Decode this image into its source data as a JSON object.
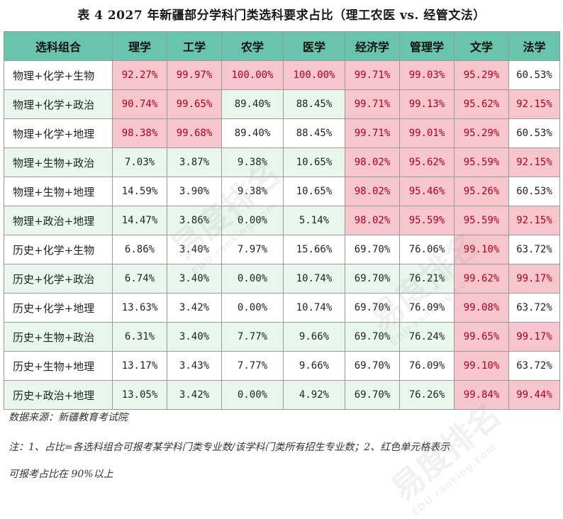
{
  "title": "表 4  2027 年新疆部分学科门类选科要求占比（理工农医 vs. 经管文法）",
  "headers": [
    "选科组合",
    "理学",
    "工学",
    "农学",
    "医学",
    "经济学",
    "管理学",
    "文学",
    "法学"
  ],
  "rows": [
    {
      "combo": "物理+化学+生物",
      "values": [
        "92.27%",
        "99.97%",
        "100.00%",
        "100.00%",
        "99.71%",
        "99.03%",
        "95.29%",
        "60.53%"
      ],
      "highlight": [
        true,
        true,
        true,
        true,
        true,
        true,
        true,
        false
      ]
    },
    {
      "combo": "物理+化学+政治",
      "values": [
        "90.74%",
        "99.65%",
        "89.40%",
        "88.45%",
        "99.71%",
        "99.13%",
        "95.62%",
        "92.15%"
      ],
      "highlight": [
        true,
        true,
        false,
        false,
        true,
        true,
        true,
        true
      ]
    },
    {
      "combo": "物理+化学+地理",
      "values": [
        "98.38%",
        "99.68%",
        "89.40%",
        "88.45%",
        "99.71%",
        "99.01%",
        "95.29%",
        "60.53%"
      ],
      "highlight": [
        true,
        true,
        false,
        false,
        true,
        true,
        true,
        false
      ]
    },
    {
      "combo": "物理+生物+政治",
      "values": [
        "7.03%",
        "3.87%",
        "9.38%",
        "10.65%",
        "98.02%",
        "95.62%",
        "95.59%",
        "92.15%"
      ],
      "highlight": [
        false,
        false,
        false,
        false,
        true,
        true,
        true,
        true
      ]
    },
    {
      "combo": "物理+生物+地理",
      "values": [
        "14.59%",
        "3.90%",
        "9.38%",
        "10.65%",
        "98.02%",
        "95.46%",
        "95.26%",
        "60.53%"
      ],
      "highlight": [
        false,
        false,
        false,
        false,
        true,
        true,
        true,
        false
      ]
    },
    {
      "combo": "物理+政治+地理",
      "values": [
        "14.47%",
        "3.86%",
        "0.00%",
        "5.14%",
        "98.02%",
        "95.59%",
        "95.59%",
        "92.15%"
      ],
      "highlight": [
        false,
        false,
        false,
        false,
        true,
        true,
        true,
        true
      ]
    },
    {
      "combo": "历史+化学+生物",
      "values": [
        "6.86%",
        "3.40%",
        "7.97%",
        "15.66%",
        "69.70%",
        "76.06%",
        "99.10%",
        "63.72%"
      ],
      "highlight": [
        false,
        false,
        false,
        false,
        false,
        false,
        true,
        false
      ]
    },
    {
      "combo": "历史+化学+政治",
      "values": [
        "6.74%",
        "3.40%",
        "0.00%",
        "10.74%",
        "69.70%",
        "76.21%",
        "99.62%",
        "99.17%"
      ],
      "highlight": [
        false,
        false,
        false,
        false,
        false,
        false,
        true,
        true
      ]
    },
    {
      "combo": "历史+化学+地理",
      "values": [
        "13.63%",
        "3.42%",
        "0.00%",
        "10.74%",
        "69.70%",
        "76.09%",
        "99.08%",
        "63.72%"
      ],
      "highlight": [
        false,
        false,
        false,
        false,
        false,
        false,
        true,
        false
      ]
    },
    {
      "combo": "历史+生物+政治",
      "values": [
        "6.31%",
        "3.40%",
        "7.77%",
        "9.66%",
        "69.70%",
        "76.24%",
        "99.65%",
        "99.17%"
      ],
      "highlight": [
        false,
        false,
        false,
        false,
        false,
        false,
        true,
        true
      ]
    },
    {
      "combo": "历史+生物+地理",
      "values": [
        "13.17%",
        "3.43%",
        "7.77%",
        "9.66%",
        "69.70%",
        "76.09%",
        "99.10%",
        "63.72%"
      ],
      "highlight": [
        false,
        false,
        false,
        false,
        false,
        false,
        true,
        false
      ]
    },
    {
      "combo": "历史+政治+地理",
      "values": [
        "13.05%",
        "3.42%",
        "0.00%",
        "4.92%",
        "69.70%",
        "76.26%",
        "99.84%",
        "99.44%"
      ],
      "highlight": [
        false,
        false,
        false,
        false,
        false,
        false,
        true,
        true
      ]
    }
  ],
  "source": "数据来源：新疆教育考试院",
  "note_line1": "注：1、占比=各选科组合可报考某学科门类专业数/该学科门类所有招生专业数；2、红色单元格表示",
  "note_line2": "可报考占比在 90%以上",
  "watermark": {
    "text": "易度排名",
    "subtext": "EDU ranking.com"
  },
  "colors": {
    "header_bg": "#68c4ad",
    "highlight_bg": "#f7c5cd",
    "highlight_text": "#b00020",
    "alt_row_bg": "#e9f6ee"
  }
}
